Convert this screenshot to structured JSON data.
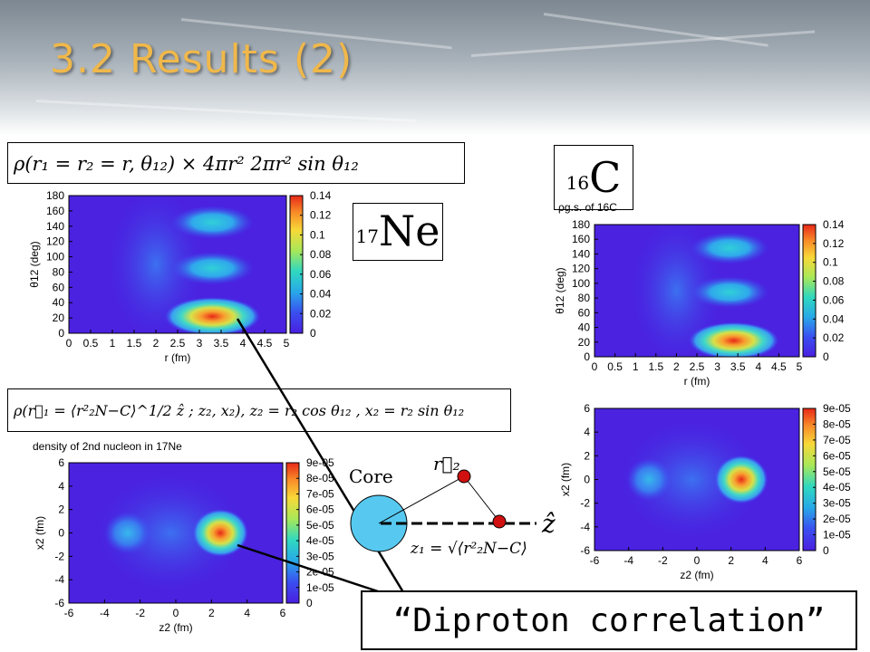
{
  "slide": {
    "title": "3.2  Results (2)"
  },
  "formula_top": "ρ(r₁ = r₂ = r, θ₁₂) × 4πr² 2πr² sin θ₁₂",
  "formula_mid": "ρ(r⃗₁ = ⟨r²₂N−C⟩^1/2 ẑ ; z₂, x₂),   z₂ = r₂ cos θ₁₂ , x₂ = r₂ sin θ₁₂",
  "nucleus_left": {
    "mass": "17",
    "element": "Ne"
  },
  "nucleus_right": {
    "mass": "16",
    "element": "C"
  },
  "schematic": {
    "core_label": "Core",
    "r2_label": "r⃗₂",
    "z_hat": "ẑ",
    "z1_formula": "z₁ = √⟨r²₂N−C⟩"
  },
  "callout": "“Diproton correlation”",
  "colors": {
    "title": "#f0b84a"
  },
  "chart_data": [
    {
      "type": "heatmap",
      "title": "",
      "xlabel": "r  (fm)",
      "ylabel": "θ12  (deg)",
      "xticks": [
        "0",
        "0.5",
        "1",
        "1.5",
        "2",
        "2.5",
        "3",
        "3.5",
        "4",
        "4.5",
        "5"
      ],
      "yticks": [
        "0",
        "20",
        "40",
        "60",
        "80",
        "100",
        "120",
        "140",
        "160",
        "180"
      ],
      "xlim": [
        0,
        5
      ],
      "ylim": [
        0,
        180
      ],
      "colorbar_ticks": [
        "0",
        "0.02",
        "0.04",
        "0.06",
        "0.08",
        "0.1",
        "0.12",
        "0.14"
      ],
      "colorbar_range": [
        0,
        0.14
      ],
      "peaks": [
        {
          "x": 3.3,
          "y": 22,
          "value": 0.13
        },
        {
          "x": 3.3,
          "y": 85,
          "value": 0.075
        },
        {
          "x": 3.3,
          "y": 145,
          "value": 0.08
        }
      ]
    },
    {
      "type": "heatmap",
      "title": "ρg.s. of 16C",
      "xlabel": "r  (fm)",
      "ylabel": "θ12  (deg)",
      "xticks": [
        "0",
        "0.5",
        "1",
        "1.5",
        "2",
        "2.5",
        "3",
        "3.5",
        "4",
        "4.5",
        "5"
      ],
      "yticks": [
        "0",
        "20",
        "40",
        "60",
        "80",
        "100",
        "120",
        "140",
        "160",
        "180"
      ],
      "xlim": [
        0,
        5
      ],
      "ylim": [
        0,
        180
      ],
      "colorbar_ticks": [
        "0",
        "0.02",
        "0.04",
        "0.06",
        "0.08",
        "0.1",
        "0.12",
        "0.14"
      ],
      "colorbar_range": [
        0,
        0.14
      ],
      "peaks": [
        {
          "x": 3.4,
          "y": 22,
          "value": 0.135
        },
        {
          "x": 3.3,
          "y": 88,
          "value": 0.07
        },
        {
          "x": 3.3,
          "y": 148,
          "value": 0.085
        }
      ]
    },
    {
      "type": "heatmap",
      "title": "density of 2nd nucleon in 17Ne",
      "xlabel": "z2  (fm)",
      "ylabel": "x2  (fm)",
      "xticks": [
        "-6",
        "-4",
        "-2",
        "0",
        "2",
        "4",
        "6"
      ],
      "yticks": [
        "-6",
        "-4",
        "-2",
        "0",
        "2",
        "4",
        "6"
      ],
      "xlim": [
        -6,
        6
      ],
      "ylim": [
        -6,
        6
      ],
      "colorbar_ticks": [
        "0",
        "1e-05",
        "2e-05",
        "3e-05",
        "4e-05",
        "5e-05",
        "6e-05",
        "7e-05",
        "8e-05",
        "9e-05"
      ],
      "colorbar_range": [
        0,
        9e-05
      ],
      "peaks": [
        {
          "x": 2.5,
          "y": 0,
          "value": 9e-05
        },
        {
          "x": -2.7,
          "y": 0,
          "value": 3.3e-05
        }
      ]
    },
    {
      "type": "heatmap",
      "title": "",
      "xlabel": "z2  (fm)",
      "ylabel": "x2  (fm)",
      "xticks": [
        "-6",
        "-4",
        "-2",
        "0",
        "2",
        "4",
        "6"
      ],
      "yticks": [
        "-6",
        "-4",
        "-2",
        "0",
        "2",
        "4",
        "6"
      ],
      "xlim": [
        -6,
        6
      ],
      "ylim": [
        -6,
        6
      ],
      "colorbar_ticks": [
        "0",
        "1e-05",
        "2e-05",
        "3e-05",
        "4e-05",
        "5e-05",
        "6e-05",
        "7e-05",
        "8e-05",
        "9e-05"
      ],
      "colorbar_range": [
        0,
        9e-05
      ],
      "peaks": [
        {
          "x": 2.6,
          "y": 0,
          "value": 9e-05
        },
        {
          "x": -2.8,
          "y": 0,
          "value": 3.2e-05
        }
      ]
    }
  ]
}
